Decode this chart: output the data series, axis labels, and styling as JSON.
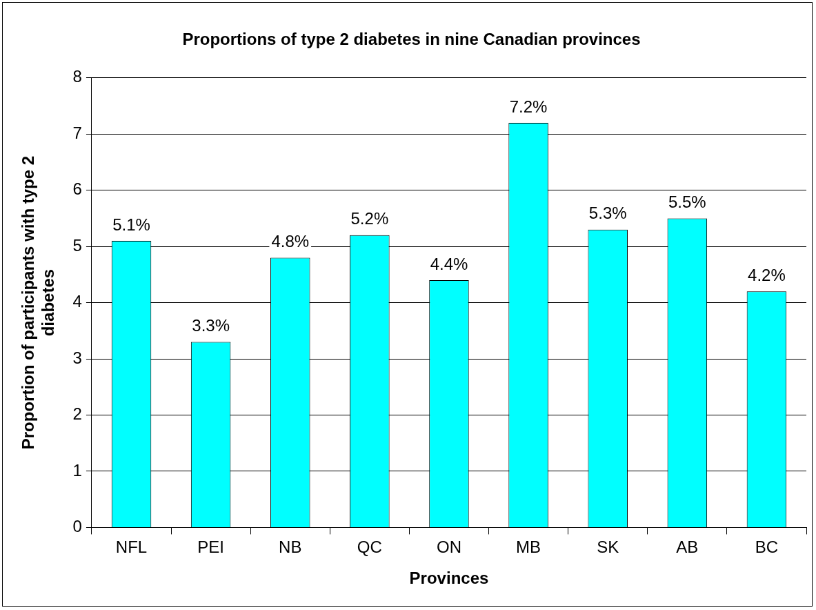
{
  "chart_data": {
    "type": "bar",
    "title": "Proportions of type 2 diabetes in nine Canadian provinces",
    "xlabel": "Provinces",
    "ylabel": "Proportion of participants with type 2 diabetes",
    "categories": [
      "NFL",
      "PEI",
      "NB",
      "QC",
      "ON",
      "MB",
      "SK",
      "AB",
      "BC"
    ],
    "values": [
      5.1,
      3.3,
      4.8,
      5.2,
      4.4,
      7.2,
      5.3,
      5.5,
      4.2
    ],
    "value_labels": [
      "5.1%",
      "3.3%",
      "4.8%",
      "5.2%",
      "4.4%",
      "7.2%",
      "5.3%",
      "5.5%",
      "4.2%"
    ],
    "color": "#00ffff",
    "ylim": [
      0,
      8
    ],
    "yticks": [
      0,
      1,
      2,
      3,
      4,
      5,
      6,
      7,
      8
    ],
    "grid": "y",
    "legend": false
  }
}
